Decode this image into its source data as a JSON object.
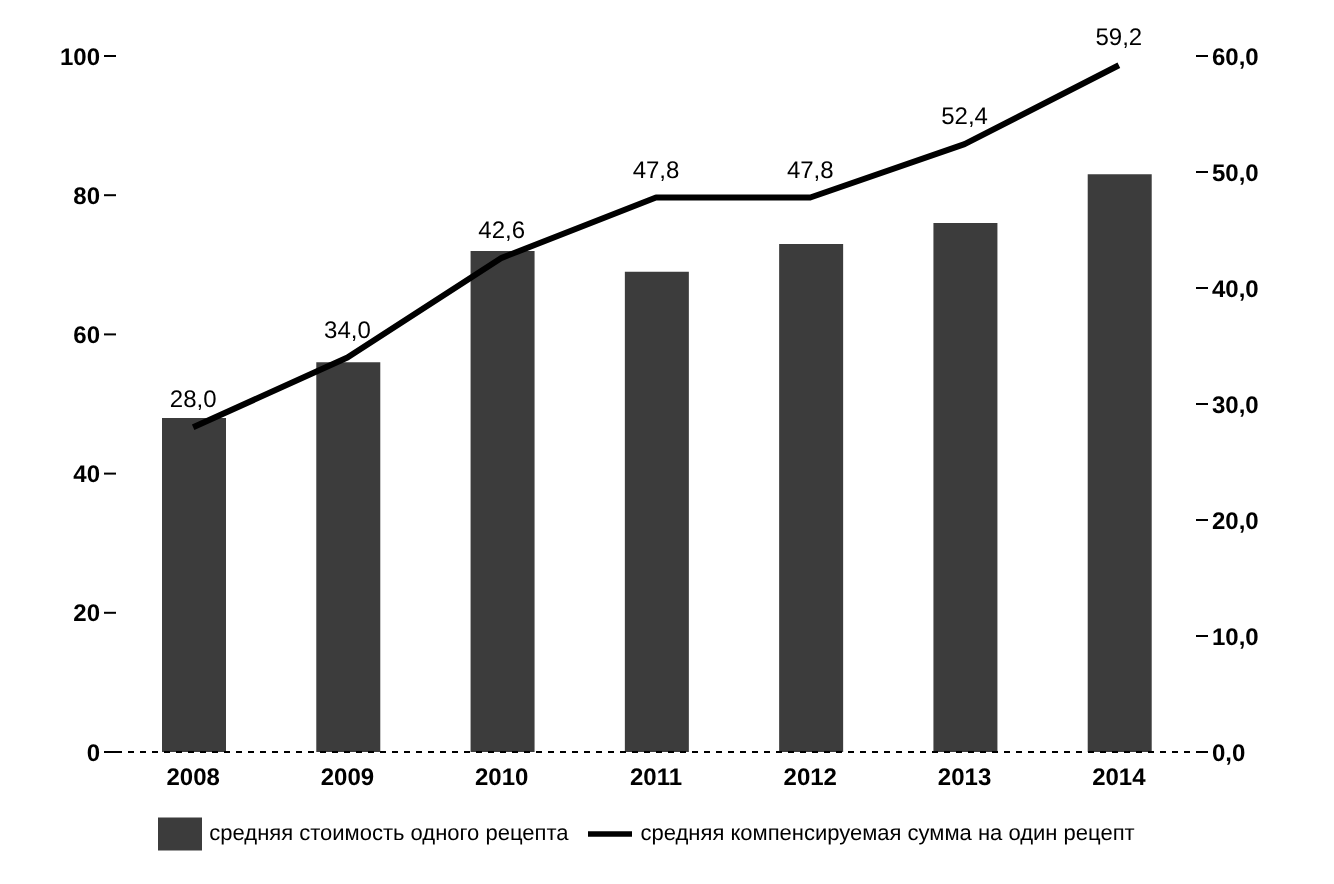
{
  "chart_data": {
    "type": "bar",
    "categories": [
      "2008",
      "2009",
      "2010",
      "2011",
      "2012",
      "2013",
      "2014"
    ],
    "series": [
      {
        "name": "средняя стоимость одного рецепта",
        "color": "#3c3c3c",
        "values": [
          48,
          56,
          72,
          69,
          73,
          76,
          83
        ]
      },
      {
        "name": "средняя компенсируемая сумма на один рецепт",
        "type": "line",
        "axis": "y2",
        "color": "#000000",
        "values": [
          28.0,
          34.0,
          42.6,
          47.8,
          47.8,
          52.4,
          59.2
        ],
        "value_labels": [
          "28,0",
          "34,0",
          "42,6",
          "47,8",
          "47,8",
          "52,4",
          "59,2"
        ]
      }
    ],
    "ylim": [
      0,
      100
    ],
    "yticks": [
      0,
      20,
      40,
      60,
      80,
      100
    ],
    "y2lim": [
      0,
      60
    ],
    "y2ticks": [
      {
        "value": 0,
        "label": "0,0"
      },
      {
        "value": 10,
        "label": "10,0"
      },
      {
        "value": 20,
        "label": "20,0"
      },
      {
        "value": 30,
        "label": "30,0"
      },
      {
        "value": 40,
        "label": "40,0"
      },
      {
        "value": 50,
        "label": "50,0"
      },
      {
        "value": 60,
        "label": "60,0"
      }
    ],
    "grid": false,
    "legend": "bottom",
    "marker": "none",
    "line_style": "solid"
  }
}
